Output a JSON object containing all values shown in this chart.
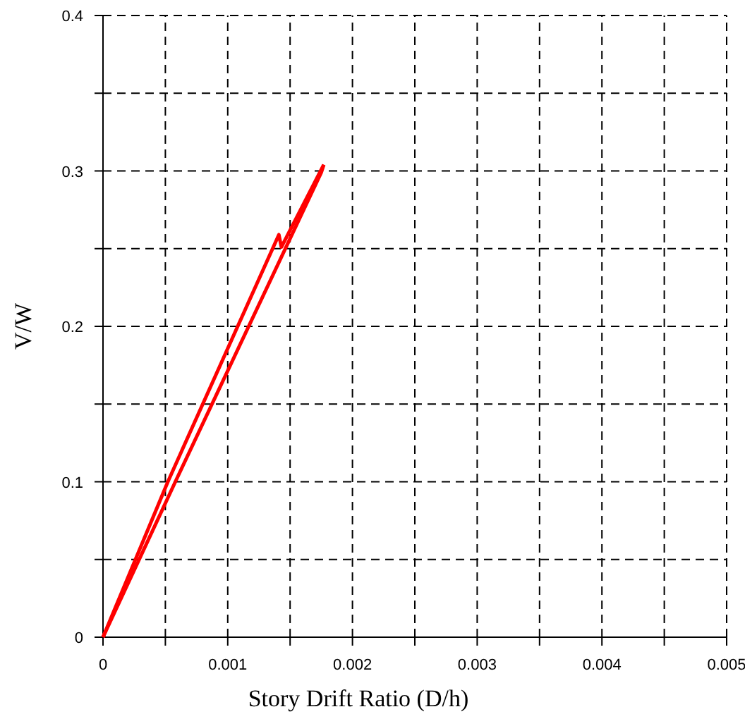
{
  "chart_data": {
    "type": "line",
    "xlabel": "Story Drift Ratio (D/h)",
    "ylabel": "V/W",
    "series": [
      {
        "color": "#ff0000",
        "x": [
          0,
          0.00052,
          0.00141,
          0.00143,
          0.00177
        ],
        "values": [
          0,
          0.1,
          0.259,
          0.251,
          0.304
        ]
      },
      {
        "color": "#ff0000",
        "x": [
          0,
          0.00058,
          0.00175,
          0.00177
        ],
        "values": [
          0,
          0.1,
          0.299,
          0.304
        ]
      }
    ],
    "xlim": [
      0,
      0.005
    ],
    "ylim": [
      0,
      0.4
    ],
    "xticks": [
      0,
      {
        "value": 0.0005,
        "label": null
      },
      0.001,
      {
        "value": 0.0015,
        "label": null
      },
      0.002,
      {
        "value": 0.0025,
        "label": null
      },
      0.003,
      {
        "value": 0.0035,
        "label": null
      },
      0.004,
      {
        "value": 0.0045,
        "label": null
      },
      0.005
    ],
    "yticks": [
      0,
      {
        "value": 0.05,
        "label": null
      },
      0.1,
      {
        "value": 0.15,
        "label": null
      },
      0.2,
      {
        "value": 0.25,
        "label": null
      },
      0.3,
      {
        "value": 0.35,
        "label": null
      },
      0.4
    ],
    "grid": true,
    "marker": "none",
    "line_style": "solid"
  }
}
